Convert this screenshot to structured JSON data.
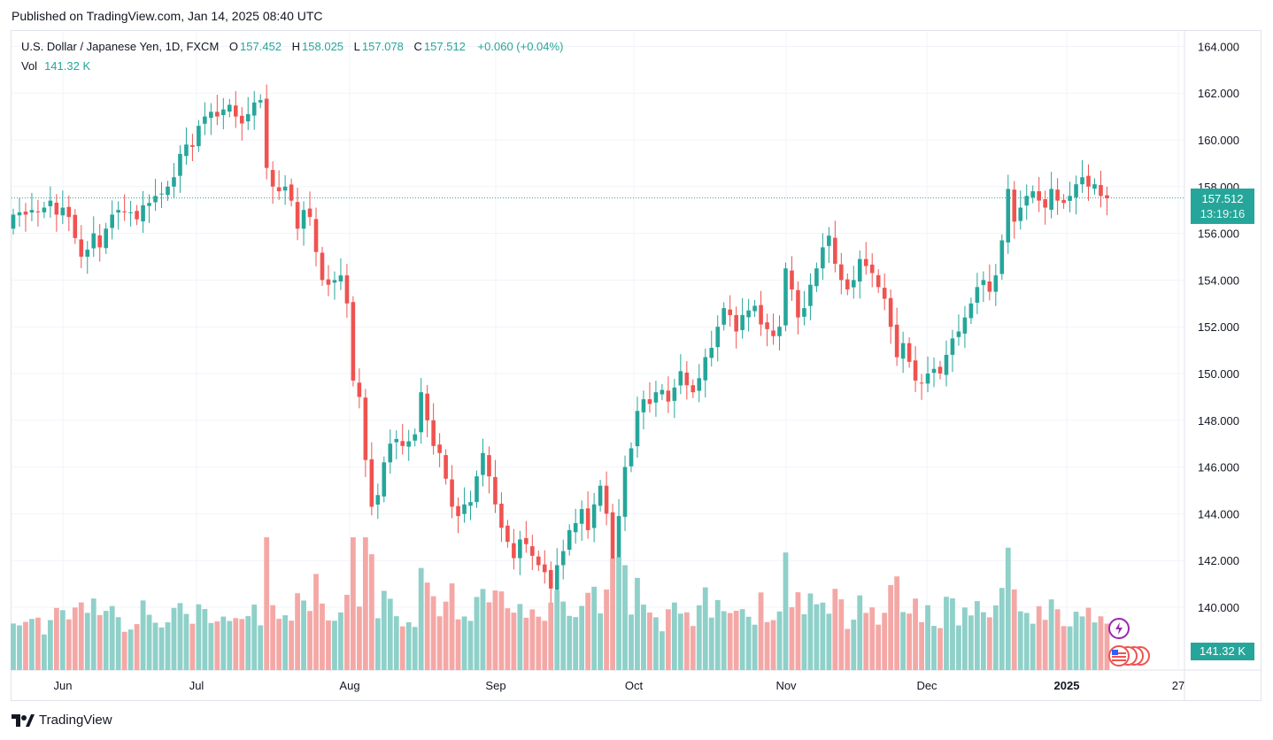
{
  "header": {
    "published": "Published on TradingView.com, Jan 14, 2025 08:40 UTC"
  },
  "legend": {
    "symbol": "U.S. Dollar / Japanese Yen, 1D, FXCM",
    "o_label": "O",
    "o": "157.452",
    "h_label": "H",
    "h": "158.025",
    "l_label": "L",
    "l": "157.078",
    "c_label": "C",
    "c": "157.512",
    "change": "+0.060 (+0.04%)",
    "vol_label": "Vol",
    "vol": "141.32 K"
  },
  "price_tag": {
    "price": "157.512",
    "countdown": "13:19:16"
  },
  "volume_tag": "141.32 K",
  "footer": {
    "brand": "TradingView"
  },
  "colors": {
    "up": "#26a69a",
    "down": "#ef5350",
    "up_vol": "#8fd0c9",
    "down_vol": "#f4a8a6",
    "grid": "#f0f3fa"
  },
  "chart_data": {
    "type": "candlestick",
    "title": "U.S. Dollar / Japanese Yen, 1D, FXCM",
    "ylim": [
      138.0,
      165.0
    ],
    "y_ticks": [
      140,
      142,
      144,
      146,
      148,
      150,
      152,
      154,
      156,
      158,
      160,
      162,
      164
    ],
    "y_tick_labels": [
      "140.000",
      "142.000",
      "144.000",
      "146.000",
      "148.000",
      "150.000",
      "152.000",
      "154.000",
      "156.000",
      "158.000",
      "160.000",
      "162.000",
      "164.000"
    ],
    "x_tick_labels": [
      "Jun",
      "Jul",
      "Aug",
      "Sep",
      "Oct",
      "Nov",
      "Dec",
      "2025",
      "27"
    ],
    "last_price": 157.512,
    "closes": [
      156.8,
      156.9,
      156.8,
      157.0,
      156.9,
      157.1,
      157.4,
      156.8,
      157.1,
      156.7,
      155.8,
      155.0,
      155.3,
      156.0,
      155.4,
      156.2,
      156.8,
      157.0,
      156.9,
      156.9,
      156.6,
      157.2,
      157.3,
      157.6,
      157.7,
      158.0,
      158.4,
      159.4,
      159.8,
      159.7,
      160.6,
      161.0,
      161.2,
      161.0,
      161.3,
      161.5,
      161.0,
      160.7,
      161.1,
      161.6,
      161.7,
      158.8,
      158.0,
      157.8,
      158.0,
      157.4,
      156.2,
      157.0,
      156.7,
      155.2,
      154.0,
      153.8,
      154.0,
      154.2,
      153.0,
      149.7,
      149.0,
      146.3,
      144.3,
      144.8,
      146.2,
      147.0,
      147.2,
      146.9,
      147.1,
      147.4,
      149.2,
      148.0,
      146.9,
      146.6,
      145.5,
      144.3,
      143.9,
      144.4,
      144.5,
      145.6,
      146.6,
      145.6,
      144.4,
      143.4,
      142.8,
      142.1,
      142.9,
      142.7,
      142.2,
      141.8,
      141.5,
      140.8,
      141.8,
      142.4,
      143.3,
      143.6,
      144.2,
      143.3,
      144.4,
      145.2,
      144.0,
      142.0,
      143.9,
      146.0,
      146.8,
      148.4,
      148.9,
      148.7,
      149.2,
      149.3,
      148.8,
      149.4,
      150.1,
      149.5,
      149.2,
      149.8,
      150.7,
      151.1,
      152.0,
      152.8,
      152.5,
      151.8,
      152.5,
      152.7,
      152.9,
      152.1,
      151.9,
      151.6,
      152.0,
      154.5,
      153.6,
      152.4,
      152.8,
      153.8,
      154.5,
      155.4,
      155.9,
      154.7,
      154.0,
      153.6,
      154.0,
      154.9,
      154.6,
      154.3,
      153.7,
      153.2,
      152.0,
      150.7,
      151.3,
      150.5,
      149.7,
      149.6,
      150.0,
      150.2,
      150.0,
      150.8,
      151.5,
      151.8,
      152.4,
      153.0,
      153.7,
      154.0,
      153.5,
      154.2,
      155.7,
      157.9,
      156.5,
      157.1,
      157.6,
      157.8,
      157.4,
      157.1,
      157.9,
      157.4,
      157.3,
      157.6,
      158.1,
      158.4,
      158.0,
      158.1,
      157.6,
      157.5
    ]
  }
}
